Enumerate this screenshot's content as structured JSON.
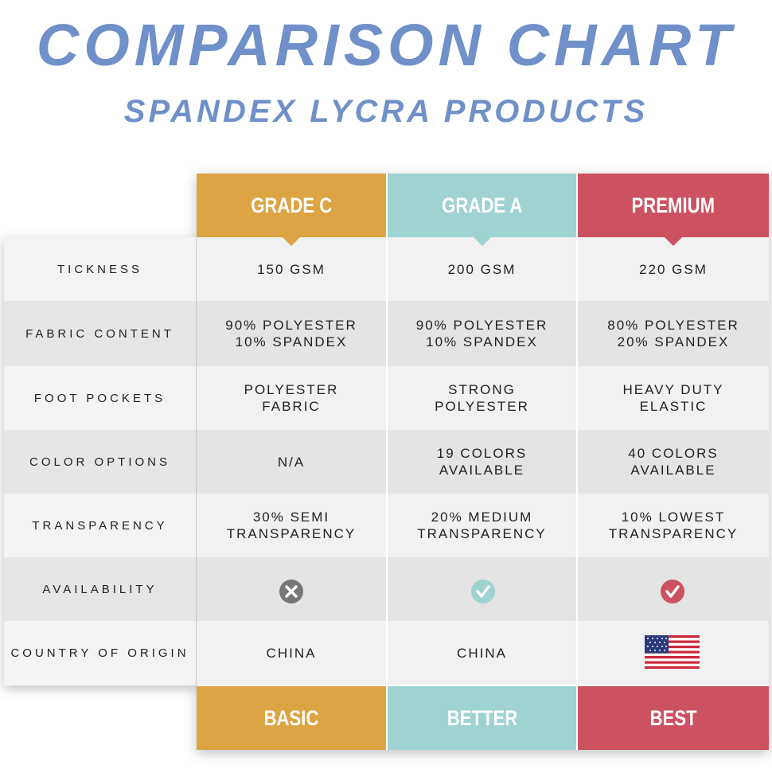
{
  "header": {
    "title": "COMPARISON CHART",
    "subtitle": "SPANDEX LYCRA PRODUCTS"
  },
  "table": {
    "columns": [
      {
        "header": "GRADE C",
        "footer": "BASIC",
        "color": "#dca443"
      },
      {
        "header": "GRADE A",
        "footer": "BETTER",
        "color": "#9ed3d1"
      },
      {
        "header": "PREMIUM",
        "footer": "BEST",
        "color": "#cc5262"
      }
    ],
    "rows": [
      {
        "label": "TICKNESS",
        "cells": [
          [
            "150 GSM"
          ],
          [
            "200 GSM"
          ],
          [
            "220 GSM"
          ]
        ]
      },
      {
        "label": "FABRIC CONTENT",
        "cells": [
          [
            "90% POLYESTER",
            "10% SPANDEX"
          ],
          [
            "90% POLYESTER",
            "10% SPANDEX"
          ],
          [
            "80% POLYESTER",
            "20% SPANDEX"
          ]
        ]
      },
      {
        "label": "FOOT POCKETS",
        "cells": [
          [
            "POLYESTER",
            "FABRIC"
          ],
          [
            "STRONG",
            "POLYESTER"
          ],
          [
            "HEAVY DUTY",
            "ELASTIC"
          ]
        ]
      },
      {
        "label": "COLOR OPTIONS",
        "cells": [
          [
            "N/A"
          ],
          [
            "19 COLORS",
            "AVAILABLE"
          ],
          [
            "40 COLORS",
            "AVAILABLE"
          ]
        ]
      },
      {
        "label": "TRANSPARENCY",
        "cells": [
          [
            "30% SEMI",
            "TRANSPARENCY"
          ],
          [
            "20% MEDIUM",
            "TRANSPARENCY"
          ],
          [
            "10% LOWEST",
            "TRANSPARENCY"
          ]
        ]
      },
      {
        "label": "AVAILABILITY"
      },
      {
        "label": "COUNTRY OF ORIGIN",
        "cells": [
          [
            "CHINA"
          ],
          [
            "CHINA"
          ]
        ]
      }
    ]
  }
}
